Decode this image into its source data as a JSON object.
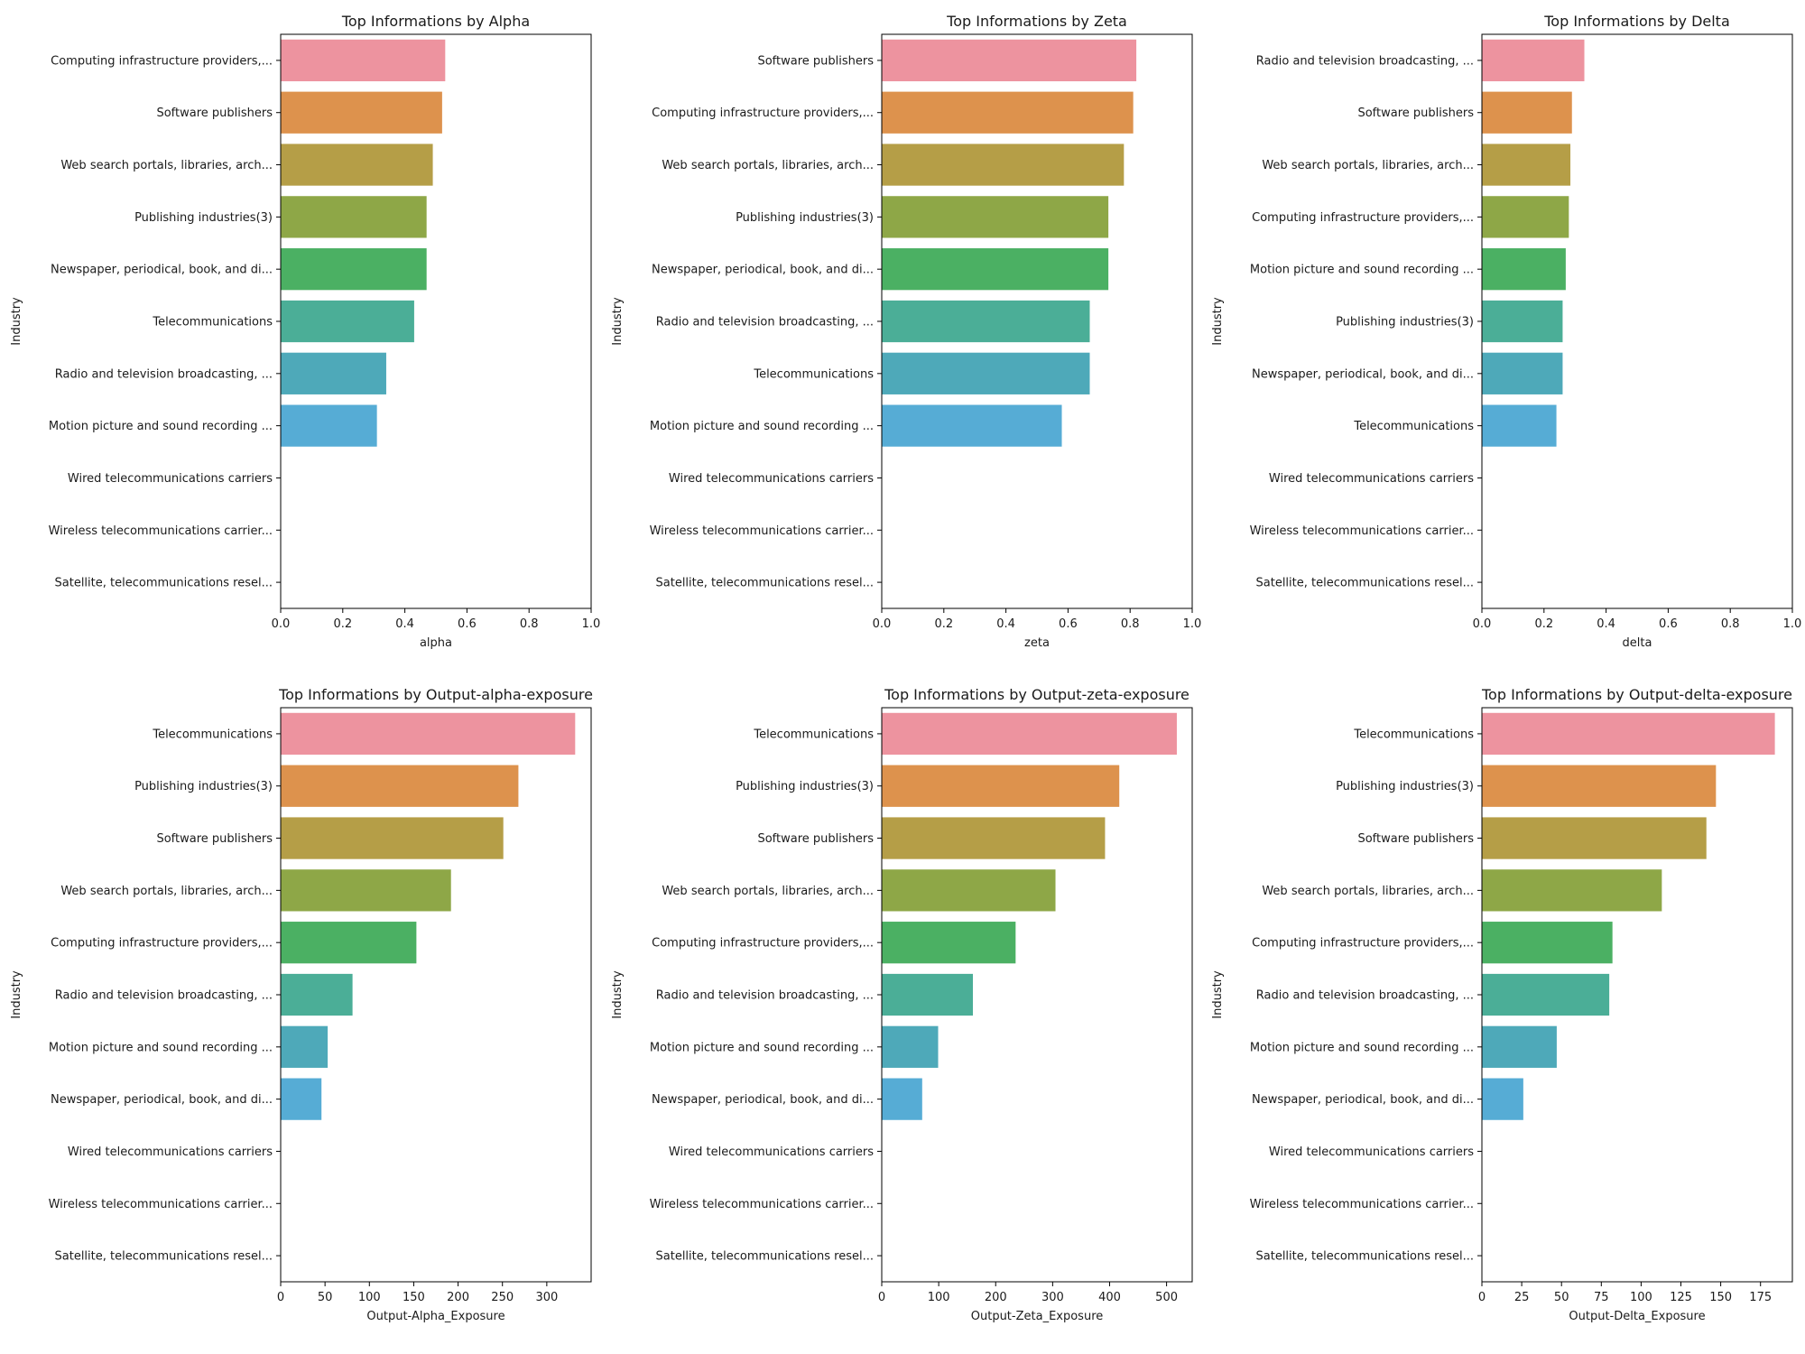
{
  "chart_data": [
    {
      "type": "bar",
      "orientation": "horizontal",
      "title": "Top Informations by Alpha",
      "xlabel": "alpha",
      "ylabel": "Industry",
      "xlim": [
        0,
        1.0
      ],
      "xticks": [
        "0.0",
        "0.2",
        "0.4",
        "0.6",
        "0.8",
        "1.0"
      ],
      "xtick_values": [
        0,
        0.2,
        0.4,
        0.6,
        0.8,
        1.0
      ],
      "categories": [
        "Computing infrastructure providers,...",
        "Software publishers",
        "Web search portals, libraries, arch...",
        "Publishing industries(3)",
        "Newspaper, periodical, book, and di...",
        "Telecommunications",
        "Radio and television broadcasting, ...",
        "Motion picture and sound recording ...",
        "Wired telecommunications carriers",
        "Wireless telecommunications carrier...",
        "Satellite, telecommunications resel..."
      ],
      "values": [
        0.53,
        0.52,
        0.49,
        0.47,
        0.47,
        0.43,
        0.34,
        0.31,
        0,
        0,
        0
      ]
    },
    {
      "type": "bar",
      "orientation": "horizontal",
      "title": "Top Informations by Zeta",
      "xlabel": "zeta",
      "ylabel": "Industry",
      "xlim": [
        0,
        1.0
      ],
      "xticks": [
        "0.0",
        "0.2",
        "0.4",
        "0.6",
        "0.8",
        "1.0"
      ],
      "xtick_values": [
        0,
        0.2,
        0.4,
        0.6,
        0.8,
        1.0
      ],
      "categories": [
        "Software publishers",
        "Computing infrastructure providers,...",
        "Web search portals, libraries, arch...",
        "Publishing industries(3)",
        "Newspaper, periodical, book, and di...",
        "Radio and television broadcasting, ...",
        "Telecommunications",
        "Motion picture and sound recording ...",
        "Wired telecommunications carriers",
        "Wireless telecommunications carrier...",
        "Satellite, telecommunications resel..."
      ],
      "values": [
        0.82,
        0.81,
        0.78,
        0.73,
        0.73,
        0.67,
        0.67,
        0.58,
        0,
        0,
        0
      ]
    },
    {
      "type": "bar",
      "orientation": "horizontal",
      "title": "Top Informations by Delta",
      "xlabel": "delta",
      "ylabel": "Industry",
      "xlim": [
        0,
        1.0
      ],
      "xticks": [
        "0.0",
        "0.2",
        "0.4",
        "0.6",
        "0.8",
        "1.0"
      ],
      "xtick_values": [
        0,
        0.2,
        0.4,
        0.6,
        0.8,
        1.0
      ],
      "categories": [
        "Radio and television broadcasting, ...",
        "Software publishers",
        "Web search portals, libraries, arch...",
        "Computing infrastructure providers,...",
        "Motion picture and sound recording ...",
        "Publishing industries(3)",
        "Newspaper, periodical, book, and di...",
        "Telecommunications",
        "Wired telecommunications carriers",
        "Wireless telecommunications carrier...",
        "Satellite, telecommunications resel..."
      ],
      "values": [
        0.33,
        0.29,
        0.285,
        0.28,
        0.27,
        0.26,
        0.26,
        0.24,
        0,
        0,
        0
      ]
    },
    {
      "type": "bar",
      "orientation": "horizontal",
      "title": "Top Informations by Output-alpha-exposure",
      "xlabel": "Output-Alpha_Exposure",
      "ylabel": "Industry",
      "xlim": [
        0,
        350
      ],
      "xticks": [
        "0",
        "50",
        "100",
        "150",
        "200",
        "250",
        "300"
      ],
      "xtick_values": [
        0,
        50,
        100,
        150,
        200,
        250,
        300
      ],
      "categories": [
        "Telecommunications",
        "Publishing industries(3)",
        "Software publishers",
        "Web search portals, libraries, arch...",
        "Computing infrastructure providers,...",
        "Radio and television broadcasting, ...",
        "Motion picture and sound recording ...",
        "Newspaper, periodical, book, and di...",
        "Wired telecommunications carriers",
        "Wireless telecommunications carrier...",
        "Satellite, telecommunications resel..."
      ],
      "values": [
        332,
        268,
        251,
        192,
        153,
        81,
        53,
        46,
        0,
        0,
        0
      ]
    },
    {
      "type": "bar",
      "orientation": "horizontal",
      "title": "Top Informations by Output-zeta-exposure",
      "xlabel": "Output-Zeta_Exposure",
      "ylabel": "Industry",
      "xlim": [
        0,
        545
      ],
      "xticks": [
        "0",
        "100",
        "200",
        "300",
        "400",
        "500"
      ],
      "xtick_values": [
        0,
        100,
        200,
        300,
        400,
        500
      ],
      "categories": [
        "Telecommunications",
        "Publishing industries(3)",
        "Software publishers",
        "Web search portals, libraries, arch...",
        "Computing infrastructure providers,...",
        "Radio and television broadcasting, ...",
        "Motion picture and sound recording ...",
        "Newspaper, periodical, book, and di...",
        "Wired telecommunications carriers",
        "Wireless telecommunications carrier...",
        "Satellite, telecommunications resel..."
      ],
      "values": [
        518,
        417,
        392,
        305,
        235,
        160,
        99,
        71,
        0,
        0,
        0
      ]
    },
    {
      "type": "bar",
      "orientation": "horizontal",
      "title": "Top Informations by Output-delta-exposure",
      "xlabel": "Output-Delta_Exposure",
      "ylabel": "Industry",
      "xlim": [
        0,
        195
      ],
      "xticks": [
        "0",
        "25",
        "50",
        "75",
        "100",
        "125",
        "150",
        "175"
      ],
      "xtick_values": [
        0,
        25,
        50,
        75,
        100,
        125,
        150,
        175
      ],
      "categories": [
        "Telecommunications",
        "Publishing industries(3)",
        "Software publishers",
        "Web search portals, libraries, arch...",
        "Computing infrastructure providers,...",
        "Radio and television broadcasting, ...",
        "Motion picture and sound recording ...",
        "Newspaper, periodical, book, and di...",
        "Wired telecommunications carriers",
        "Wireless telecommunications carrier...",
        "Satellite, telecommunications resel..."
      ],
      "values": [
        184,
        147,
        141,
        113,
        82,
        80,
        47,
        26,
        0,
        0,
        0
      ]
    }
  ],
  "palette": [
    "#ed939f",
    "#dd924d",
    "#b59e47",
    "#8ea747",
    "#4bb063",
    "#4bae97",
    "#4ea9b9",
    "#56acd5",
    "#8f9ce8",
    "#c790e4",
    "#e889c5"
  ]
}
